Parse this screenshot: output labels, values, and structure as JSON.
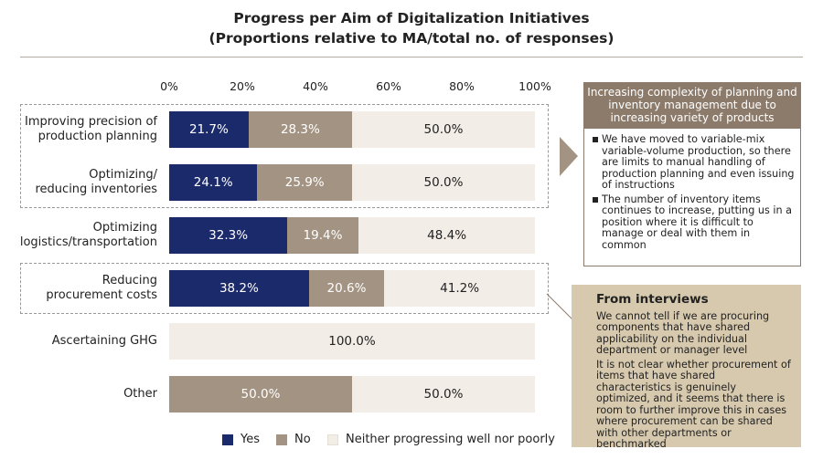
{
  "chart_data": {
    "type": "stacked_barh",
    "title": "Progress per Aim of Digitalization Initiatives",
    "subtitle": "(Proportions relative to MA/total no. of responses)",
    "categories": [
      "Improving precision of\nproduction planning",
      "Optimizing/\nreducing inventories",
      "Optimizing\nlogistics/transportation",
      "Reducing\nprocurement costs",
      "Ascertaining GHG",
      "Other"
    ],
    "series": [
      {
        "name": "Yes",
        "color": "#1b2a6b",
        "values": [
          21.7,
          24.1,
          32.3,
          38.2,
          0,
          0
        ],
        "value_labels": [
          "21.7%",
          "24.1%",
          "32.3%",
          "38.2%",
          null,
          null
        ]
      },
      {
        "name": "No",
        "color": "#a39382",
        "values": [
          28.3,
          25.9,
          19.4,
          20.6,
          0,
          50.0
        ],
        "value_labels": [
          "28.3%",
          "25.9%",
          "19.4%",
          "20.6%",
          null,
          "50.0%"
        ]
      },
      {
        "name": "Neither progressing well nor poorly",
        "color": "#f2ede6",
        "values": [
          50.0,
          50.0,
          48.4,
          41.2,
          100.0,
          50.0
        ],
        "value_labels": [
          "50.0%",
          "50.0%",
          "48.4%",
          "41.2%",
          "100.0%",
          "50.0%"
        ]
      }
    ],
    "xlim": [
      0,
      100
    ],
    "xticks": [
      {
        "value": 0,
        "label": "0%"
      },
      {
        "value": 20,
        "label": "20%"
      },
      {
        "value": 40,
        "label": "40%"
      },
      {
        "value": 60,
        "label": "60%"
      },
      {
        "value": 80,
        "label": "80%"
      },
      {
        "value": 100,
        "label": "100%"
      }
    ],
    "grid": false
  },
  "panels": {
    "issue": {
      "title": "Increasing complexity of planning and inventory management due to increasing variety of products",
      "items": [
        "We have moved to variable-mix variable-volume production, so there are limits to manual handling of production planning and even issuing of instructions",
        "The number of inventory items continues to increase, putting us in a position where it is difficult to manage or deal with them in common"
      ]
    },
    "interviews": {
      "title": "From interviews",
      "items": [
        "We cannot tell if we are procuring components that have shared applicability on the individual department or manager level",
        "It is not clear whether procurement of items that have shared characteristics is genuinely optimized, and it seems that there is room to further improve this in cases where procurement can be shared with other departments or benchmarked"
      ]
    }
  }
}
